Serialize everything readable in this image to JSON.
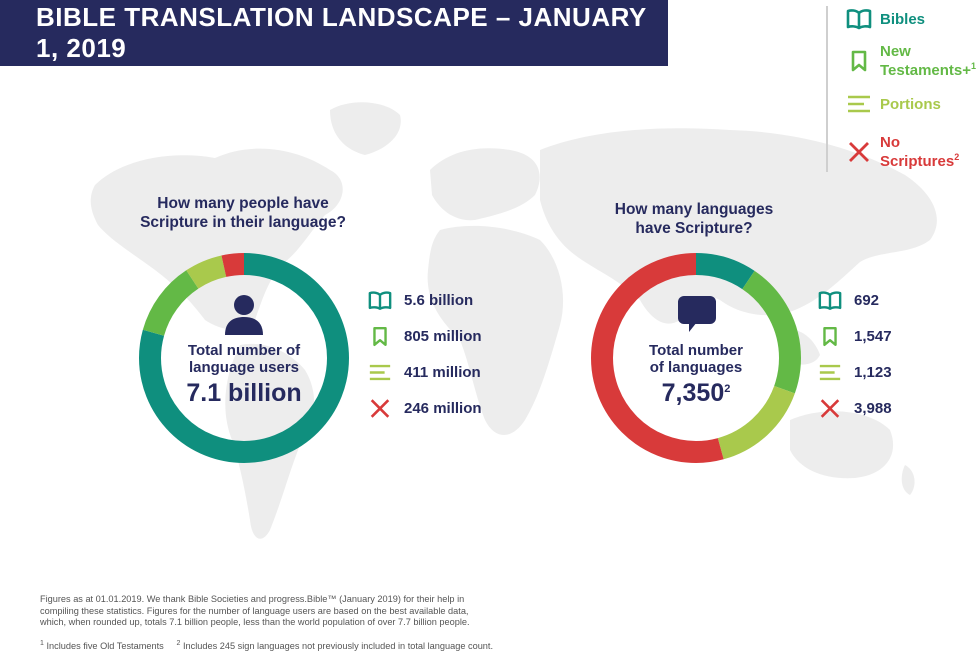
{
  "title": "BIBLE TRANSLATION LANDSCAPE – JANUARY 1, 2019",
  "colors": {
    "bibles": "#0f8f7e",
    "new_testaments": "#63b946",
    "portions": "#a9c94c",
    "no_scriptures": "#d83a3a",
    "navy": "#262a5e",
    "map": "#ededed"
  },
  "legend": [
    {
      "label": "Bibles",
      "sup": "",
      "icon": "open-book-icon",
      "color": "#0f8f7e"
    },
    {
      "label_line1": "New",
      "label_line2": "Testaments+",
      "sup": "1",
      "icon": "bookmark-icon",
      "color": "#63b946"
    },
    {
      "label": "Portions",
      "sup": "",
      "icon": "lines-icon",
      "color": "#a9c94c"
    },
    {
      "label_line1": "No",
      "label_line2": "Scriptures",
      "sup": "2",
      "icon": "x-icon",
      "color": "#d83a3a"
    }
  ],
  "chart_data": [
    {
      "type": "pie",
      "title": "How many people have Scripture in their language?",
      "title_line1": "How many people have",
      "title_line2": "Scripture in their language?",
      "center_label_line1": "Total number of",
      "center_label_line2": "language users",
      "center_value": "7.1 billion",
      "categories": [
        "Bibles",
        "New Testaments+",
        "Portions",
        "No Scriptures"
      ],
      "values": [
        5600,
        805,
        411,
        246
      ],
      "unit": "million",
      "value_labels": [
        "5.6 billion",
        "805 million",
        "411 million",
        "246 million"
      ]
    },
    {
      "type": "pie",
      "title": "How many languages have Scripture?",
      "title_line1": "How many languages",
      "title_line2": "have Scripture?",
      "center_label_line1": "Total number",
      "center_label_line2": "of languages",
      "center_value": "7,350",
      "center_value_sup": "2",
      "categories": [
        "Bibles",
        "New Testaments+",
        "Portions",
        "No Scriptures"
      ],
      "values": [
        692,
        1547,
        1123,
        3988
      ],
      "value_labels": [
        "692",
        "1,547",
        "1,123",
        "3,988"
      ]
    }
  ],
  "footnotes": {
    "line1": "Figures as at 01.01.2019. We thank Bible Societies and progress.Bible™ (January 2019) for their help in",
    "line2": "compiling these statistics. Figures for the number of language users are based on the best available data,",
    "line3": "which, when rounded up, totals 7.1 billion people, less than the world population of over 7.7 billion people.",
    "note1_sup": "1",
    "note1": " Includes five Old Testaments",
    "note2_sup": "2",
    "note2": " Includes 245 sign languages not previously included in total language count."
  }
}
